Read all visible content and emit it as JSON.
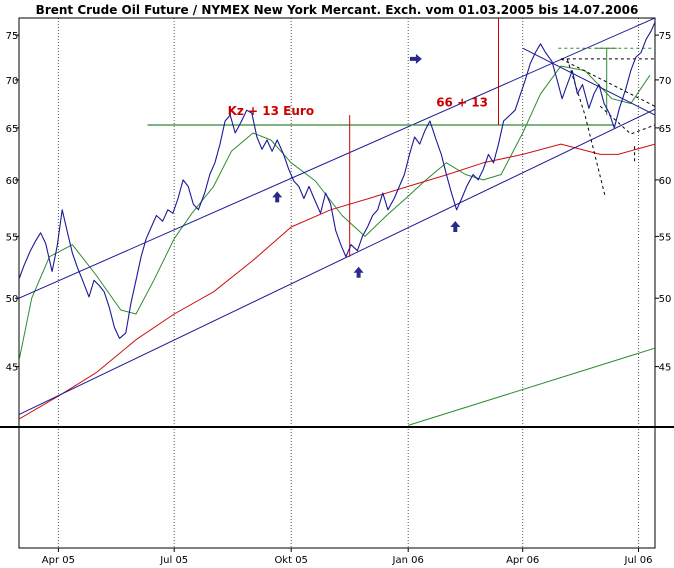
{
  "chart_data": {
    "type": "line",
    "title": "Brent Crude Oil Future / NYMEX New York Mercant. Exch. vom 01.03.2005 bis 14.07.2006",
    "y_scale": "log",
    "ylim": [
      41,
      77
    ],
    "x_range": [
      "2005-03-01",
      "2006-07-14"
    ],
    "y_ticks": [
      45,
      50,
      55,
      60,
      65,
      70,
      75
    ],
    "x_ticks": [
      {
        "date": "2005-04-01",
        "label": "Apr 05"
      },
      {
        "date": "2005-07-01",
        "label": "Jul 05"
      },
      {
        "date": "2005-10-01",
        "label": "Okt 05"
      },
      {
        "date": "2006-01-01",
        "label": "Jan 06"
      },
      {
        "date": "2006-04-01",
        "label": "Apr 06"
      },
      {
        "date": "2006-07-01",
        "label": "Jul 06"
      }
    ],
    "grid": "vertical",
    "colors": {
      "price": "#1a1a99",
      "ma_short": "#2e8b2e",
      "ma_long": "#cc1111",
      "channel": "#1a1a99",
      "horizontal": "#2e8b2e",
      "annotation": "#cc0000",
      "arrow": "#2a2a8c",
      "dashed": "#000000"
    },
    "series": [
      {
        "role": "price",
        "points": [
          [
            "2005-03-01",
            51.5
          ],
          [
            "2005-03-05",
            52.6
          ],
          [
            "2005-03-10",
            53.8
          ],
          [
            "2005-03-14",
            54.6
          ],
          [
            "2005-03-18",
            55.3
          ],
          [
            "2005-03-22",
            54.4
          ],
          [
            "2005-03-27",
            52.1
          ],
          [
            "2005-03-31",
            54.2
          ],
          [
            "2005-04-04",
            57.3
          ],
          [
            "2005-04-08",
            55.4
          ],
          [
            "2005-04-12",
            53.6
          ],
          [
            "2005-04-16",
            52.4
          ],
          [
            "2005-04-20",
            51.4
          ],
          [
            "2005-04-25",
            50.1
          ],
          [
            "2005-04-29",
            51.4
          ],
          [
            "2005-05-03",
            51.0
          ],
          [
            "2005-05-07",
            50.5
          ],
          [
            "2005-05-11",
            49.3
          ],
          [
            "2005-05-15",
            47.8
          ],
          [
            "2005-05-19",
            47.0
          ],
          [
            "2005-05-24",
            47.4
          ],
          [
            "2005-05-28",
            49.6
          ],
          [
            "2005-06-01",
            51.4
          ],
          [
            "2005-06-05",
            53.3
          ],
          [
            "2005-06-09",
            54.8
          ],
          [
            "2005-06-13",
            55.8
          ],
          [
            "2005-06-17",
            56.8
          ],
          [
            "2005-06-22",
            56.3
          ],
          [
            "2005-06-26",
            57.3
          ],
          [
            "2005-06-30",
            57.0
          ],
          [
            "2005-07-04",
            58.3
          ],
          [
            "2005-07-08",
            60.0
          ],
          [
            "2005-07-12",
            59.4
          ],
          [
            "2005-07-16",
            57.8
          ],
          [
            "2005-07-20",
            57.3
          ],
          [
            "2005-07-25",
            58.8
          ],
          [
            "2005-07-29",
            60.5
          ],
          [
            "2005-08-02",
            61.6
          ],
          [
            "2005-08-06",
            63.4
          ],
          [
            "2005-08-10",
            65.7
          ],
          [
            "2005-08-14",
            66.3
          ],
          [
            "2005-08-18",
            64.5
          ],
          [
            "2005-08-23",
            65.7
          ],
          [
            "2005-08-27",
            66.8
          ],
          [
            "2005-08-31",
            66.5
          ],
          [
            "2005-09-04",
            64.1
          ],
          [
            "2005-09-08",
            62.9
          ],
          [
            "2005-09-12",
            63.8
          ],
          [
            "2005-09-16",
            62.7
          ],
          [
            "2005-09-20",
            63.8
          ],
          [
            "2005-09-25",
            62.4
          ],
          [
            "2005-09-29",
            61.0
          ],
          [
            "2005-10-03",
            59.9
          ],
          [
            "2005-10-07",
            59.4
          ],
          [
            "2005-10-11",
            58.3
          ],
          [
            "2005-10-15",
            59.4
          ],
          [
            "2005-10-19",
            58.3
          ],
          [
            "2005-10-24",
            57.0
          ],
          [
            "2005-10-28",
            58.8
          ],
          [
            "2005-11-01",
            57.8
          ],
          [
            "2005-11-05",
            55.5
          ],
          [
            "2005-11-09",
            54.3
          ],
          [
            "2005-11-13",
            53.3
          ],
          [
            "2005-11-17",
            54.3
          ],
          [
            "2005-11-22",
            53.8
          ],
          [
            "2005-11-26",
            55.0
          ],
          [
            "2005-11-30",
            55.8
          ],
          [
            "2005-12-04",
            56.8
          ],
          [
            "2005-12-08",
            57.3
          ],
          [
            "2005-12-12",
            58.8
          ],
          [
            "2005-12-16",
            57.3
          ],
          [
            "2005-12-21",
            58.3
          ],
          [
            "2005-12-25",
            59.4
          ],
          [
            "2005-12-29",
            60.5
          ],
          [
            "2006-01-02",
            62.4
          ],
          [
            "2006-01-06",
            64.1
          ],
          [
            "2006-01-10",
            63.4
          ],
          [
            "2006-01-14",
            64.7
          ],
          [
            "2006-01-18",
            65.7
          ],
          [
            "2006-01-23",
            63.8
          ],
          [
            "2006-01-27",
            62.4
          ],
          [
            "2006-01-31",
            60.5
          ],
          [
            "2006-02-04",
            58.8
          ],
          [
            "2006-02-08",
            57.3
          ],
          [
            "2006-02-12",
            58.3
          ],
          [
            "2006-02-16",
            59.4
          ],
          [
            "2006-02-21",
            60.5
          ],
          [
            "2006-02-25",
            60.0
          ],
          [
            "2006-03-01",
            61.0
          ],
          [
            "2006-03-05",
            62.4
          ],
          [
            "2006-03-09",
            61.6
          ],
          [
            "2006-03-13",
            63.4
          ],
          [
            "2006-03-17",
            65.7
          ],
          [
            "2006-03-22",
            66.3
          ],
          [
            "2006-03-26",
            66.8
          ],
          [
            "2006-03-30",
            68.4
          ],
          [
            "2006-04-03",
            70.0
          ],
          [
            "2006-04-07",
            71.8
          ],
          [
            "2006-04-11",
            73.0
          ],
          [
            "2006-04-15",
            74.0
          ],
          [
            "2006-04-19",
            73.0
          ],
          [
            "2006-04-24",
            72.0
          ],
          [
            "2006-04-28",
            70.0
          ],
          [
            "2006-05-02",
            68.0
          ],
          [
            "2006-05-06",
            69.5
          ],
          [
            "2006-05-10",
            71.0
          ],
          [
            "2006-05-14",
            68.5
          ],
          [
            "2006-05-18",
            69.5
          ],
          [
            "2006-05-23",
            67.0
          ],
          [
            "2006-05-27",
            68.5
          ],
          [
            "2006-05-31",
            69.5
          ],
          [
            "2006-06-04",
            67.5
          ],
          [
            "2006-06-08",
            66.5
          ],
          [
            "2006-06-12",
            65.0
          ],
          [
            "2006-06-16",
            67.0
          ],
          [
            "2006-06-21",
            69.0
          ],
          [
            "2006-06-25",
            71.0
          ],
          [
            "2006-06-29",
            72.5
          ],
          [
            "2006-07-03",
            73.0
          ],
          [
            "2006-07-07",
            74.5
          ],
          [
            "2006-07-11",
            75.5
          ],
          [
            "2006-07-14",
            76.5
          ]
        ]
      },
      {
        "role": "ma_short",
        "points": [
          [
            "2005-03-01",
            45.4
          ],
          [
            "2005-03-11",
            50.0
          ],
          [
            "2005-03-25",
            53.3
          ],
          [
            "2005-04-12",
            54.3
          ],
          [
            "2005-04-30",
            51.9
          ],
          [
            "2005-05-20",
            49.1
          ],
          [
            "2005-06-01",
            48.8
          ],
          [
            "2005-06-15",
            51.4
          ],
          [
            "2005-07-01",
            54.8
          ],
          [
            "2005-07-15",
            57.0
          ],
          [
            "2005-08-01",
            59.4
          ],
          [
            "2005-08-15",
            62.7
          ],
          [
            "2005-09-01",
            64.5
          ],
          [
            "2005-09-15",
            63.8
          ],
          [
            "2005-10-01",
            61.6
          ],
          [
            "2005-10-20",
            59.9
          ],
          [
            "2005-11-10",
            56.8
          ],
          [
            "2005-11-28",
            55.0
          ],
          [
            "2005-12-15",
            56.8
          ],
          [
            "2005-12-30",
            58.3
          ],
          [
            "2006-01-15",
            60.0
          ],
          [
            "2006-01-31",
            61.6
          ],
          [
            "2006-02-15",
            60.5
          ],
          [
            "2006-03-01",
            60.0
          ],
          [
            "2006-03-15",
            60.5
          ],
          [
            "2006-04-01",
            64.5
          ],
          [
            "2006-04-15",
            68.5
          ],
          [
            "2006-05-01",
            71.5
          ],
          [
            "2006-05-20",
            71.0
          ],
          [
            "2006-06-10",
            68.0
          ],
          [
            "2006-06-25",
            67.5
          ],
          [
            "2006-07-10",
            70.5
          ]
        ]
      },
      {
        "role": "ma_long",
        "points": [
          [
            "2005-03-01",
            41.5
          ],
          [
            "2005-04-01",
            43.0
          ],
          [
            "2005-05-01",
            44.6
          ],
          [
            "2005-06-01",
            46.9
          ],
          [
            "2005-07-01",
            48.8
          ],
          [
            "2005-08-01",
            50.5
          ],
          [
            "2005-09-01",
            53.0
          ],
          [
            "2005-10-01",
            55.8
          ],
          [
            "2005-11-01",
            57.3
          ],
          [
            "2005-12-01",
            58.3
          ],
          [
            "2006-01-01",
            59.4
          ],
          [
            "2006-02-01",
            60.5
          ],
          [
            "2006-03-01",
            61.6
          ],
          [
            "2006-04-01",
            62.4
          ],
          [
            "2006-05-01",
            63.4
          ],
          [
            "2006-06-01",
            62.4
          ],
          [
            "2006-06-15",
            62.4
          ],
          [
            "2006-07-14",
            63.4
          ]
        ]
      },
      {
        "role": "ma_very_long",
        "points": [
          [
            "2006-01-01",
            41.1
          ],
          [
            "2006-07-14",
            46.3
          ]
        ]
      }
    ],
    "channel_lines": [
      {
        "points": [
          [
            "2005-03-01",
            50.0
          ],
          [
            "2006-07-14",
            77.0
          ]
        ]
      },
      {
        "points": [
          [
            "2005-03-01",
            41.8
          ],
          [
            "2006-07-14",
            66.9
          ]
        ]
      },
      {
        "points": [
          [
            "2006-04-01",
            73.5
          ],
          [
            "2006-07-14",
            66.3
          ]
        ]
      }
    ],
    "horizontal_line": {
      "y": 65.3,
      "from": "2005-06-10",
      "to": "2006-06-12"
    },
    "vertical_markers": [
      {
        "date": "2005-11-16",
        "from": 53.3,
        "to": 66.3
      },
      {
        "date": "2006-03-13",
        "from": 65.3,
        "to": 80.0
      }
    ],
    "annotations": [
      {
        "text": "Kz + 13 Euro",
        "date": "2005-08-12",
        "y": 66.3
      },
      {
        "text": "66 + 13",
        "date": "2006-01-23",
        "y": 67.2
      }
    ],
    "arrows": [
      {
        "direction": "up",
        "date": "2005-09-20",
        "y": 58.4
      },
      {
        "direction": "up",
        "date": "2005-11-23",
        "y": 52.0
      },
      {
        "direction": "up",
        "date": "2006-02-07",
        "y": 55.8
      },
      {
        "direction": "right",
        "date": "2006-01-07",
        "y": 72.3
      }
    ],
    "dashed_lines": [
      {
        "style": "dashed",
        "color": "#2e8b2e",
        "points": [
          [
            "2006-04-29",
            73.5
          ],
          [
            "2006-07-14",
            73.5
          ]
        ]
      },
      {
        "style": "dashed",
        "color": "#000000",
        "points": [
          [
            "2006-05-01",
            72.3
          ],
          [
            "2006-07-14",
            72.3
          ]
        ]
      },
      {
        "style": "dashed",
        "color": "#000000",
        "points": [
          [
            "2006-05-01",
            72.3
          ],
          [
            "2006-07-14",
            67.2
          ]
        ]
      },
      {
        "style": "dashed",
        "color": "#000000",
        "points": [
          [
            "2006-05-06",
            72.3
          ],
          [
            "2006-05-20",
            66.3
          ],
          [
            "2006-06-05",
            58.4
          ]
        ]
      },
      {
        "style": "dashed",
        "color": "#000000",
        "points": [
          [
            "2006-06-01",
            67.2
          ],
          [
            "2006-06-25",
            64.4
          ],
          [
            "2006-07-14",
            65.3
          ]
        ]
      },
      {
        "style": "dashed",
        "color": "#000000",
        "points": [
          [
            "2006-06-28",
            63.2
          ],
          [
            "2006-06-28",
            61.7
          ]
        ]
      }
    ],
    "target_bracket": {
      "color": "#2e8b2e",
      "date": "2006-06-06",
      "from": 73.5,
      "to": 66.3,
      "cap_from": "2006-05-28",
      "cap_to": "2006-06-14"
    }
  }
}
